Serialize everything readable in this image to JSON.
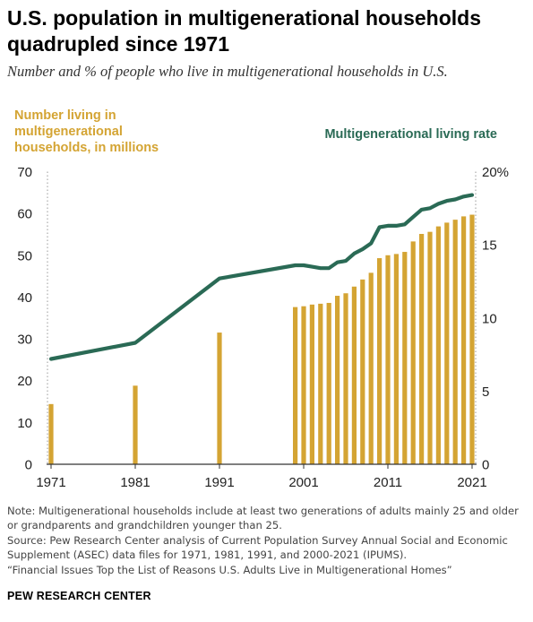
{
  "header": {
    "title": "U.S. population in multigenerational households quadrupled since 1971",
    "subtitle": "Number and % of people who live in multigenerational households in U.S."
  },
  "legend": {
    "left": "Number living in multigenerational households, in millions",
    "right": "Multigenerational living rate"
  },
  "colors": {
    "bars": "#d4a433",
    "line": "#2a6a55",
    "axis": "#333333",
    "dotted": "#999999"
  },
  "chart_data": {
    "type": "bar",
    "categories": [
      "1971",
      "1981",
      "1991",
      "2000",
      "2001",
      "2002",
      "2003",
      "2004",
      "2005",
      "2006",
      "2007",
      "2008",
      "2009",
      "2010",
      "2011",
      "2012",
      "2013",
      "2014",
      "2015",
      "2016",
      "2017",
      "2018",
      "2019",
      "2020",
      "2021"
    ],
    "x_ticks": [
      "1971",
      "1981",
      "1991",
      "2001",
      "2011",
      "2021"
    ],
    "series": [
      {
        "name": "Number living in multigenerational households, in millions",
        "type": "bar",
        "axis": "left",
        "values": [
          14.4,
          18.8,
          31.5,
          37.6,
          37.8,
          38.2,
          38.4,
          38.6,
          40.3,
          40.9,
          42.5,
          44.2,
          45.8,
          49.3,
          50.0,
          50.3,
          50.8,
          53.3,
          55.1,
          55.6,
          56.9,
          57.8,
          58.5,
          59.3,
          59.7
        ]
      },
      {
        "name": "Multigenerational living rate",
        "type": "line",
        "axis": "right",
        "values": [
          7.2,
          8.3,
          12.7,
          13.6,
          13.6,
          13.5,
          13.4,
          13.4,
          13.8,
          13.9,
          14.4,
          14.7,
          15.1,
          16.2,
          16.3,
          16.3,
          16.4,
          16.9,
          17.4,
          17.5,
          17.8,
          18.0,
          18.1,
          18.3,
          18.4
        ]
      }
    ],
    "ylim_left": [
      0,
      70
    ],
    "yticks_left": [
      0,
      10,
      20,
      30,
      40,
      50,
      60,
      70
    ],
    "ylim_right": [
      0,
      20
    ],
    "yticks_right": [
      "0",
      "5",
      "10",
      "15",
      "20%"
    ],
    "grid": false
  },
  "footer": {
    "note": "Note: Multigenerational households include at least two generations of adults mainly 25 and older or grandparents and grandchildren younger than 25.",
    "source": "Source: Pew Research Center analysis of Current Population Survey Annual Social and Economic Supplement (ASEC) data files for 1971, 1981, 1991, and 2000-2021 (IPUMS).",
    "report": "“Financial Issues Top the List of Reasons U.S. Adults Live in Multigenerational Homes”",
    "brand": "PEW RESEARCH CENTER"
  }
}
